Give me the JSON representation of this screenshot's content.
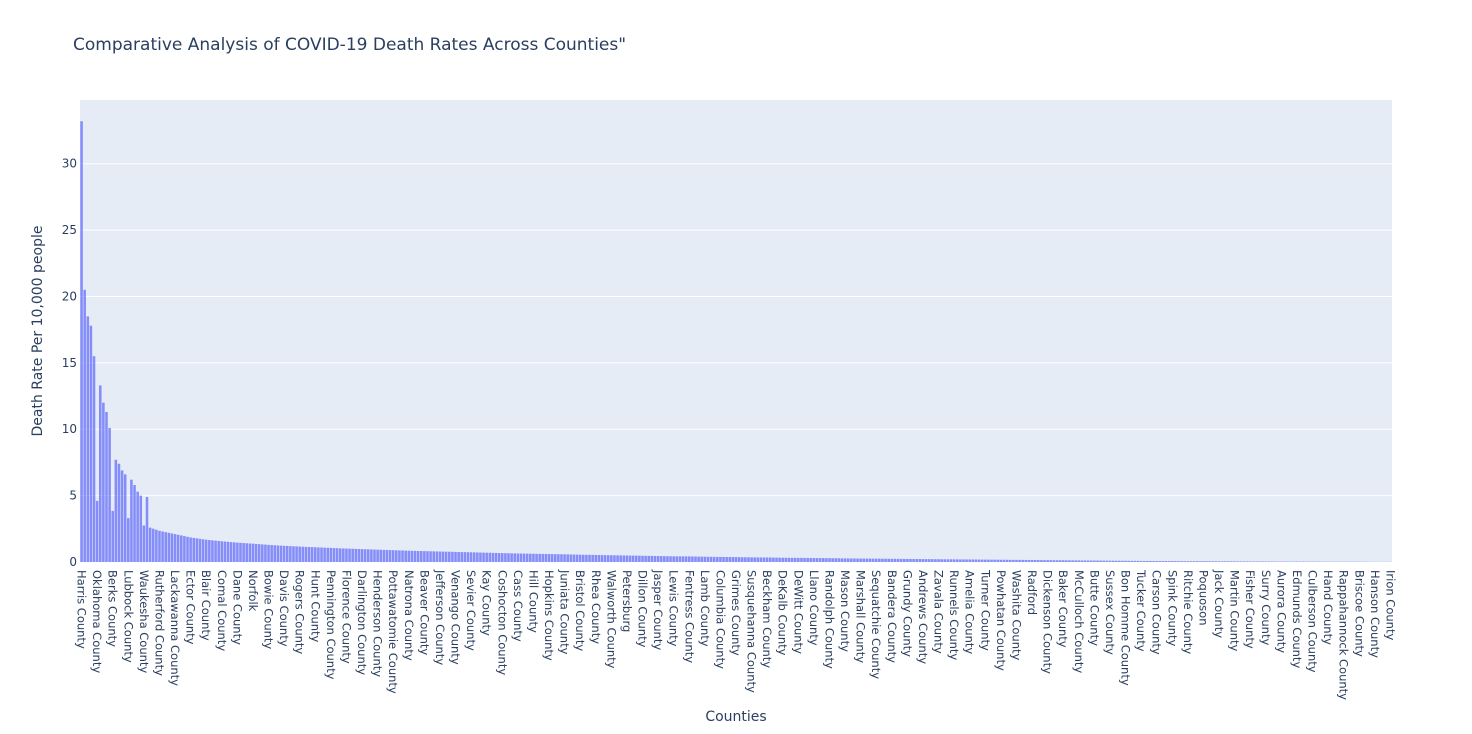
{
  "chart_data": {
    "type": "bar",
    "title": "Comparative Analysis of COVID-19 Death Rates Across Counties\"",
    "xlabel": "Counties",
    "ylabel": "Death Rate Per 10,000 people",
    "ylim": [
      0,
      34.8
    ],
    "yticks": [
      0,
      5,
      10,
      15,
      20,
      25,
      30
    ],
    "grid": true,
    "legend": "none",
    "colors": {
      "bar": "#636efa",
      "plot_bg": "#e5ecf6",
      "grid": "#ffffff",
      "text": "#2a3f5f"
    },
    "categories": [
      "Harris County",
      "Oklahoma County",
      "Berks County",
      "Lubbock County",
      "Waukesha County",
      "Rutherford County",
      "Lackawanna County",
      "Ector County",
      "Blair County",
      "Comal County",
      "Dane County",
      "Norfolk",
      "Bowie County",
      "Davis County",
      "Rogers County",
      "Hunt County",
      "Pennington County",
      "Florence County",
      "Darlington County",
      "Henderson County",
      "Pottawatomie County",
      "Natrona County",
      "Beaver County",
      "Jefferson County",
      "Venango County",
      "Sevier County",
      "Kay County",
      "Coshocton County",
      "Cass County",
      "Hill County",
      "Hopkins County",
      "Juniata County",
      "Bristol County",
      "Rhea County",
      "Walworth County",
      "Petersburg",
      "Dillon County",
      "Jasper County",
      "Lewis County",
      "Fentress County",
      "Lamb County",
      "Columbia County",
      "Grimes County",
      "Susquehanna County",
      "Beckham County",
      "DeKalb County",
      "DeWitt County",
      "Llano County",
      "Randolph County",
      "Mason County",
      "Marshall County",
      "Sequatchie County",
      "Bandera County",
      "Grundy County",
      "Andrews County",
      "Zavala County",
      "Runnels County",
      "Amelia County",
      "Turner County",
      "Powhatan County",
      "Washita County",
      "Radford",
      "Dickenson County",
      "Baker County",
      "McCulloch County",
      "Butte County",
      "Sussex County",
      "Bon Homme County",
      "Tucker County",
      "Carson County",
      "Spink County",
      "Ritchie County",
      "Poquoson",
      "Jack County",
      "Martin County",
      "Fisher County",
      "Surry County",
      "Aurora County",
      "Edmunds County",
      "Culberson County",
      "Hand County",
      "Rappahannock County",
      "Briscoe County",
      "Hanson County",
      "Irion County"
    ],
    "values": [
      33.2,
      4.6,
      3.85,
      3.3,
      2.75,
      2.35,
      2.1,
      1.85,
      1.68,
      1.56,
      1.46,
      1.38,
      1.29,
      1.22,
      1.16,
      1.11,
      1.06,
      1.01,
      0.97,
      0.93,
      0.89,
      0.85,
      0.82,
      0.79,
      0.76,
      0.73,
      0.7,
      0.67,
      0.64,
      0.62,
      0.6,
      0.58,
      0.55,
      0.53,
      0.51,
      0.49,
      0.47,
      0.45,
      0.43,
      0.42,
      0.4,
      0.38,
      0.37,
      0.35,
      0.34,
      0.32,
      0.31,
      0.3,
      0.29,
      0.27,
      0.26,
      0.25,
      0.24,
      0.23,
      0.22,
      0.21,
      0.2,
      0.19,
      0.18,
      0.17,
      0.16,
      0.15,
      0.14,
      0.13,
      0.12,
      0.11,
      0.1,
      0.09,
      0.08,
      0.07,
      0.07,
      0.06,
      0.06,
      0.05,
      0.05,
      0.04,
      0.04,
      0.03,
      0.03,
      0.03,
      0.02,
      0.02,
      0.02,
      0.01,
      0.01
    ],
    "intermediate_bars": {
      "count_per_gap": 4,
      "head_values": [
        20.5,
        18.5,
        17.8,
        15.5,
        13.3,
        12.0,
        11.3,
        10.1,
        7.7,
        7.4,
        6.9,
        6.6,
        6.2,
        5.8,
        5.3,
        5.0,
        4.9
      ]
    }
  }
}
